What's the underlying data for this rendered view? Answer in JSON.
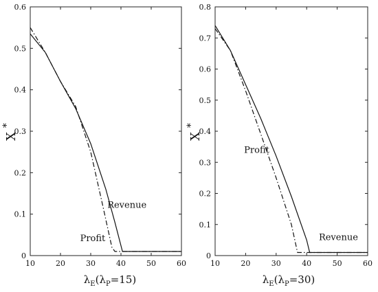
{
  "chart_data": [
    {
      "type": "line",
      "title": "",
      "xlabel": {
        "main": "λ",
        "sub_e": "E",
        "open": "(λ",
        "sub_p": "P",
        "eq": "=15)"
      },
      "ylabel": {
        "main": "X",
        "sup": "*"
      },
      "xlim": [
        10,
        60
      ],
      "ylim": [
        0,
        0.6
      ],
      "xticks": [
        10,
        20,
        30,
        40,
        50,
        60
      ],
      "yticks": [
        0,
        0.1,
        0.2,
        0.3,
        0.4,
        0.5,
        0.6
      ],
      "xtick_labels": [
        "10",
        "20",
        "30",
        "40",
        "50",
        "60"
      ],
      "ytick_labels": [
        "0",
        "0.1",
        "0.2",
        "0.3",
        "0.4",
        "0.5",
        "0.6"
      ],
      "grid": false,
      "series": [
        {
          "name": "Revenue",
          "style": "solid",
          "x": [
            10,
            15,
            20,
            25,
            30,
            35,
            38,
            40.5,
            41,
            60
          ],
          "y": [
            0.535,
            0.49,
            0.42,
            0.355,
            0.27,
            0.16,
            0.08,
            0.01,
            0.01,
            0.01
          ]
        },
        {
          "name": "Profit",
          "style": "dashdot",
          "x": [
            10,
            15,
            20,
            25,
            30,
            34,
            37,
            38,
            60
          ],
          "y": [
            0.55,
            0.49,
            0.42,
            0.36,
            0.25,
            0.12,
            0.02,
            0.01,
            0.01
          ]
        }
      ],
      "annotations": [
        {
          "text": "Revenue",
          "x": 35.5,
          "y": 0.115
        },
        {
          "text": "Profit",
          "x": 26.5,
          "y": 0.035
        }
      ]
    },
    {
      "type": "line",
      "title": "",
      "xlabel": {
        "main": "λ",
        "sub_e": "E",
        "open": "(λ",
        "sub_p": "P",
        "eq": "=30)"
      },
      "ylabel": {
        "main": "X",
        "sup": "*"
      },
      "xlim": [
        10,
        60
      ],
      "ylim": [
        0,
        0.8
      ],
      "xticks": [
        10,
        20,
        30,
        40,
        50,
        60
      ],
      "yticks": [
        0,
        0.1,
        0.2,
        0.3,
        0.4,
        0.5,
        0.6,
        0.7,
        0.8
      ],
      "xtick_labels": [
        "10",
        "20",
        "30",
        "40",
        "50",
        "60"
      ],
      "ytick_labels": [
        "0",
        "0.1",
        "0.2",
        "0.3",
        "0.4",
        "0.5",
        "0.6",
        "0.7",
        "0.8"
      ],
      "grid": false,
      "series": [
        {
          "name": "Revenue",
          "style": "solid",
          "x": [
            10,
            15,
            20,
            25,
            30,
            35,
            40,
            41,
            60
          ],
          "y": [
            0.74,
            0.66,
            0.55,
            0.44,
            0.32,
            0.19,
            0.05,
            0.01,
            0.01
          ]
        },
        {
          "name": "Profit",
          "style": "dashdot",
          "x": [
            10,
            15,
            20,
            25,
            30,
            35,
            37,
            60
          ],
          "y": [
            0.73,
            0.66,
            0.53,
            0.39,
            0.25,
            0.1,
            0.01,
            0.01
          ]
        }
      ],
      "annotations": [
        {
          "text": "Profit",
          "x": 19.5,
          "y": 0.33
        },
        {
          "text": "Revenue",
          "x": 44,
          "y": 0.05
        }
      ]
    }
  ]
}
